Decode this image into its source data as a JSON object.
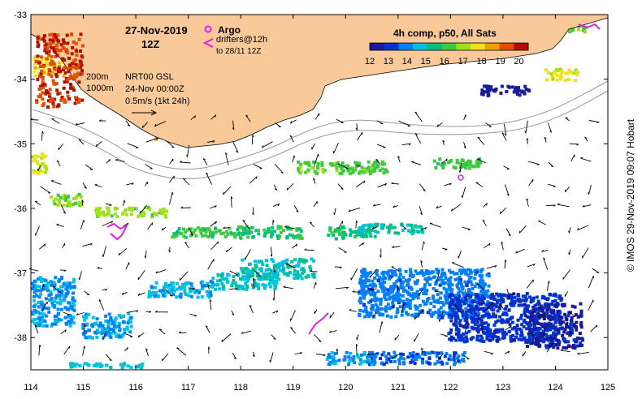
{
  "map": {
    "date_line1": "27-Nov-2019",
    "date_line2": "12Z",
    "product_title": "4h comp, p50, All Sats",
    "colorbar": {
      "ticks": [
        "12",
        "13",
        "14",
        "15",
        "16",
        "17",
        "18",
        "19",
        "20"
      ],
      "range": [
        12,
        20.5
      ],
      "colors": [
        "#1a1a9a",
        "#0033cc",
        "#0080ff",
        "#00c0e0",
        "#00c080",
        "#40c840",
        "#a0e020",
        "#f0e020",
        "#f0a000",
        "#e05000",
        "#b01000"
      ]
    },
    "legend": {
      "argo_label": "Argo",
      "drifters_label": "drifters@12h",
      "drifters_sub": "to 28/11 12Z",
      "isobath_200": "200m",
      "isobath_1000": "1000m",
      "altimetry_label": "NRT00 GSL",
      "altimetry_date": "24-Nov 00:00Z",
      "scale_label": "0.5m/s (1kt 24h)"
    },
    "x_ticks": [
      "114",
      "115",
      "116",
      "117",
      "118",
      "119",
      "120",
      "121",
      "122",
      "123",
      "124",
      "125"
    ],
    "y_ticks": [
      "-33",
      "-34",
      "-35",
      "-36",
      "-37",
      "-38"
    ],
    "x_range": [
      114,
      125
    ],
    "y_range": [
      -33,
      -38.5
    ],
    "land_color": "#f9c99a",
    "marker_color": "#e020e0"
  },
  "copyright": "© IMOS 29-Nov-2019 09:07 Hobart"
}
